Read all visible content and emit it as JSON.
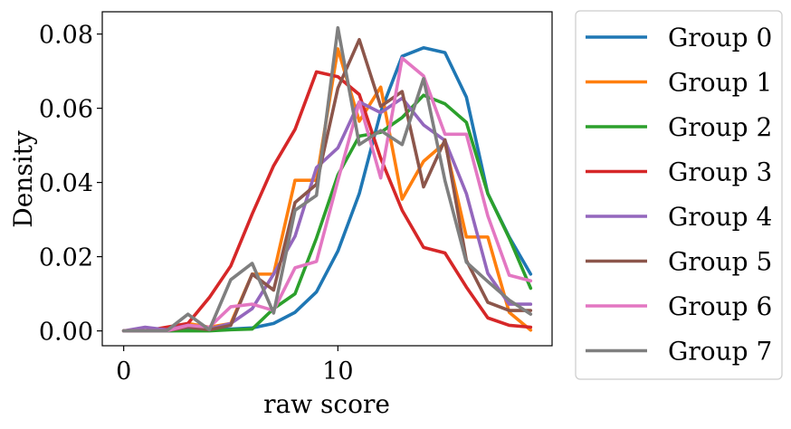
{
  "chart_data": {
    "type": "line",
    "title": "",
    "xlabel": "raw score",
    "ylabel": "Density",
    "xlim": [
      -1,
      20
    ],
    "ylim": [
      -0.004,
      0.086
    ],
    "xticks": [
      0,
      10
    ],
    "xtick_labels": [
      "0",
      "10"
    ],
    "yticks": [
      0.0,
      0.02,
      0.04,
      0.06,
      0.08
    ],
    "ytick_labels": [
      "0.00",
      "0.02",
      "0.04",
      "0.06",
      "0.08"
    ],
    "grid": false,
    "legend_placement": "outside-right",
    "x": [
      0,
      1,
      2,
      3,
      4,
      5,
      6,
      7,
      8,
      9,
      10,
      11,
      12,
      13,
      14,
      15,
      16,
      17,
      18,
      19
    ],
    "series": [
      {
        "name": "Group 0",
        "color": "#1f77b4",
        "values": [
          0,
          0,
          0,
          0.0002,
          0.0003,
          0.0005,
          0.0008,
          0.002,
          0.005,
          0.0105,
          0.0215,
          0.037,
          0.059,
          0.074,
          0.0763,
          0.075,
          0.063,
          0.037,
          0.0253,
          0.0153
        ]
      },
      {
        "name": "Group 1",
        "color": "#ff7f0e",
        "values": [
          0,
          0,
          0,
          0.002,
          0.001,
          0.002,
          0.0153,
          0.0153,
          0.0406,
          0.0406,
          0.076,
          0.0565,
          0.0657,
          0.0355,
          0.0457,
          0.0507,
          0.0253,
          0.0253,
          0.005,
          0.0002
        ]
      },
      {
        "name": "Group 2",
        "color": "#2ca02c",
        "values": [
          0,
          0,
          0,
          0,
          0,
          0.0003,
          0.0005,
          0.006,
          0.01,
          0.025,
          0.042,
          0.0525,
          0.0535,
          0.0575,
          0.0635,
          0.0612,
          0.0562,
          0.037,
          0.025,
          0.0115
        ]
      },
      {
        "name": "Group 3",
        "color": "#d62728",
        "values": [
          0,
          0,
          0.001,
          0.002,
          0.009,
          0.0175,
          0.0315,
          0.0445,
          0.0543,
          0.0698,
          0.0685,
          0.0637,
          0.0465,
          0.0325,
          0.0225,
          0.021,
          0.0118,
          0.0035,
          0.0015,
          0.001
        ]
      },
      {
        "name": "Group 4",
        "color": "#9467bd",
        "values": [
          0,
          0.001,
          0.0003,
          0.0015,
          0.0005,
          0.002,
          0.006,
          0.0153,
          0.0255,
          0.044,
          0.0493,
          0.0617,
          0.0588,
          0.0627,
          0.0555,
          0.0513,
          0.037,
          0.0155,
          0.0072,
          0.0072
        ]
      },
      {
        "name": "Group 5",
        "color": "#8c564b",
        "values": [
          0,
          0,
          0,
          0.001,
          0.0003,
          0.0015,
          0.0153,
          0.011,
          0.0346,
          0.0395,
          0.0654,
          0.0785,
          0.0605,
          0.0645,
          0.0388,
          0.0515,
          0.019,
          0.0077,
          0.0055,
          0.0055
        ]
      },
      {
        "name": "Group 6",
        "color": "#e377c2",
        "values": [
          0,
          0,
          0,
          0.0015,
          0.001,
          0.0065,
          0.0072,
          0.0055,
          0.017,
          0.0187,
          0.0405,
          0.0617,
          0.0412,
          0.0735,
          0.0687,
          0.053,
          0.053,
          0.031,
          0.015,
          0.0135
        ]
      },
      {
        "name": "Group 7",
        "color": "#7f7f7f",
        "values": [
          0,
          0,
          0,
          0.0045,
          0.0003,
          0.0138,
          0.0182,
          0.0048,
          0.0325,
          0.0365,
          0.0817,
          0.0502,
          0.054,
          0.0502,
          0.068,
          0.0405,
          0.0185,
          0.0133,
          0.0083,
          0.0045
        ]
      }
    ]
  }
}
